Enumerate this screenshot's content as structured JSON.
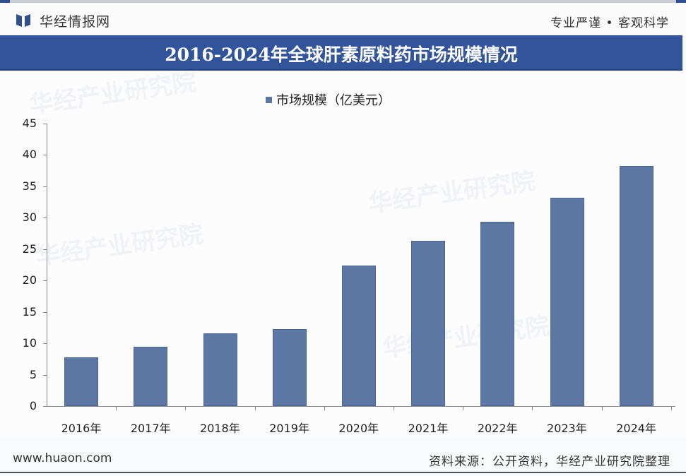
{
  "header": {
    "brand": "华经情报网",
    "slogan": "专业严谨 • 客观科学",
    "brand_color": "#2f4f8f"
  },
  "title": "2016-2024年全球肝素原料药市场规模情况",
  "legend": {
    "label": "市场规模（亿美元）",
    "color": "#5d77a5"
  },
  "footer": {
    "site": "www.huaon.com",
    "source": "资料来源：公开资料，华经产业研究院整理"
  },
  "watermark": "华经产业研究院",
  "chart_data": {
    "type": "bar",
    "title": "2016-2024年全球肝素原料药市场规模情况",
    "categories": [
      "2016年",
      "2017年",
      "2018年",
      "2019年",
      "2020年",
      "2021年",
      "2022年",
      "2023年",
      "2024年"
    ],
    "series": [
      {
        "name": "市场规模（亿美元）",
        "values": [
          7.8,
          9.5,
          11.6,
          12.3,
          22.4,
          26.3,
          29.4,
          33.2,
          38.2
        ],
        "color": "#5d77a5"
      }
    ],
    "xlabel": "",
    "ylabel": "",
    "ylim": [
      0,
      45
    ],
    "yticks": [
      0,
      5,
      10,
      15,
      20,
      25,
      30,
      35,
      40,
      45
    ],
    "grid": false,
    "legend_position": "top"
  }
}
